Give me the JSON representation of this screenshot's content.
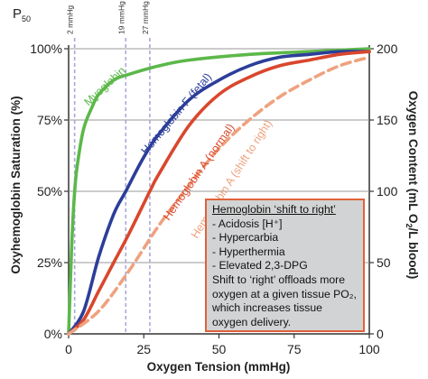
{
  "chart_data": {
    "type": "line",
    "xlabel": "Oxygen Tension (mmHg)",
    "ylabel": "Oxyhemoglobin Saturation (%)",
    "y2label": "Oxygen Content (mL O₂/L blood)",
    "xlim": [
      0,
      100
    ],
    "ylim": [
      0,
      100
    ],
    "y2lim": [
      0,
      200
    ],
    "x_ticks": [
      "0",
      "25",
      "50",
      "75",
      "100"
    ],
    "y_ticks": [
      "0%",
      "25%",
      "50%",
      "75%",
      "100%"
    ],
    "y2_ticks": [
      "0",
      "50",
      "100",
      "150",
      "200"
    ],
    "p50_label": "P50",
    "p50_markers": [
      {
        "label": "2 mmHg",
        "x": 2
      },
      {
        "label": "19 mmHg",
        "x": 19
      },
      {
        "label": "27 mmHg",
        "x": 27
      }
    ],
    "series": [
      {
        "name": "Myoglobin",
        "color": "#5cb84a",
        "style": "solid",
        "x": [
          0,
          1,
          2,
          3,
          5,
          8,
          10,
          15,
          20,
          30,
          40,
          60,
          80,
          100
        ],
        "y": [
          0,
          30,
          50,
          60,
          72,
          80,
          84,
          89,
          91,
          94,
          96,
          98,
          99,
          100
        ]
      },
      {
        "name": "Hemoglobin F (fetal)",
        "color": "#2c3e99",
        "style": "solid",
        "x": [
          0,
          5,
          10,
          15,
          19,
          25,
          30,
          40,
          50,
          60,
          70,
          80,
          90,
          100
        ],
        "y": [
          0,
          8,
          27,
          42,
          50,
          62,
          70,
          82,
          89,
          94,
          97,
          98,
          99,
          99
        ]
      },
      {
        "name": "Hemoglobin A (normal)",
        "color": "#d9472d",
        "style": "solid",
        "x": [
          0,
          5,
          10,
          15,
          20,
          27,
          30,
          40,
          50,
          60,
          70,
          80,
          90,
          100
        ],
        "y": [
          0,
          5,
          15,
          25,
          35,
          50,
          56,
          73,
          84,
          90,
          94,
          96,
          98,
          99
        ]
      },
      {
        "name": "Hemoglobin A (shift to right)",
        "color": "#eea27e",
        "style": "dashed",
        "x": [
          0,
          10,
          20,
          30,
          40,
          50,
          60,
          70,
          80,
          90,
          100
        ],
        "y": [
          0,
          8,
          22,
          38,
          52,
          65,
          75,
          83,
          89,
          94,
          97
        ]
      }
    ]
  },
  "note": {
    "title": "Hemoglobin ‘shift to right’",
    "items": [
      "- Acidosis [H⁺]",
      "- Hypercarbia",
      "- Hyperthermia",
      "- Elevated 2,3-DPG"
    ],
    "text": "Shift to ‘right’ offloads more oxygen at a given tissue PO₂, which increases tissue oxygen delivery."
  }
}
